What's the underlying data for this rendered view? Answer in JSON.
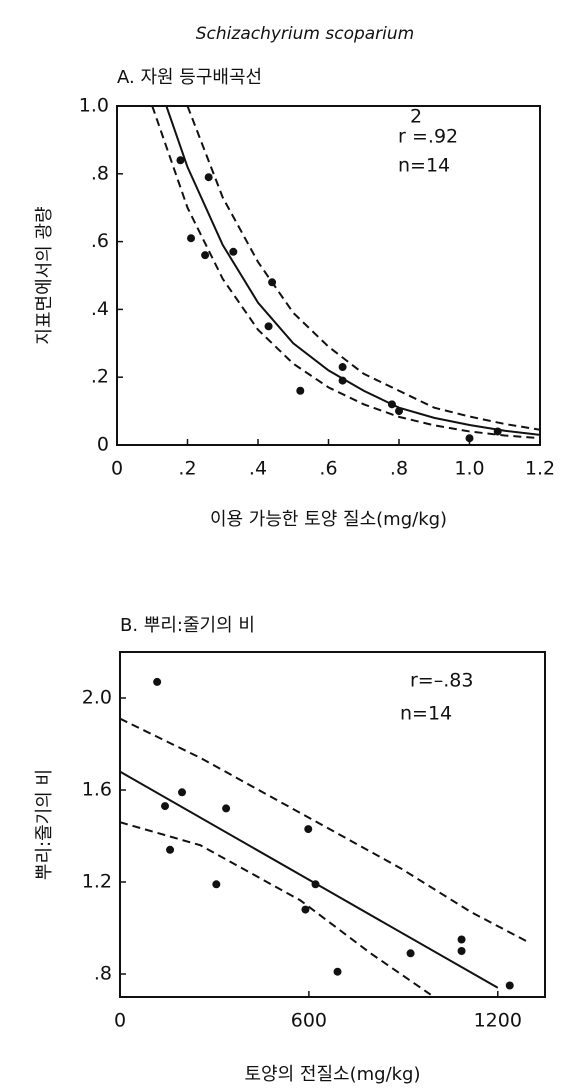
{
  "title": "Schizachyrium scoparium",
  "chart_data": [
    {
      "type": "scatter",
      "title": "A. 자원 등구배곡선",
      "x_label": "이용 가능한 토양 질소(mg/kg)",
      "y_label": "지표면에서의 광량",
      "xlim": [
        0,
        1.2
      ],
      "ylim": [
        0,
        1.0
      ],
      "xticks": [
        0,
        {
          "value": 0.2,
          "label": ".2"
        },
        {
          "value": 0.4,
          "label": ".4"
        },
        {
          "value": 0.6,
          "label": ".6"
        },
        {
          "value": 0.8,
          "label": ".8"
        },
        {
          "value": 1.0,
          "label": "1.0"
        },
        {
          "value": 1.2,
          "label": "1.2"
        }
      ],
      "yticks": [
        0,
        {
          "value": 0.2,
          "label": ".2"
        },
        {
          "value": 0.4,
          "label": ".4"
        },
        {
          "value": 0.6,
          "label": ".6"
        },
        {
          "value": 0.8,
          "label": ".8"
        },
        {
          "value": 1.0,
          "label": "1.0"
        }
      ],
      "annotations": [
        {
          "text": "r",
          "sup": "2",
          "after": "=.92"
        },
        {
          "text": "n=14"
        }
      ],
      "color": "#111111",
      "series": [
        {
          "style": "points",
          "x": [
            0.18,
            0.21,
            0.26,
            0.25,
            0.33,
            0.44,
            0.43,
            0.52,
            0.64,
            0.64,
            0.78,
            0.8,
            1.0,
            1.08
          ],
          "values": [
            0.84,
            0.61,
            0.79,
            0.56,
            0.57,
            0.48,
            0.35,
            0.16,
            0.23,
            0.19,
            0.12,
            0.1,
            0.02,
            0.04
          ]
        },
        {
          "style": "solid",
          "x": [
            0.14,
            0.2,
            0.3,
            0.4,
            0.5,
            0.6,
            0.7,
            0.8,
            0.9,
            1.0,
            1.1,
            1.2
          ],
          "values": [
            1.0,
            0.82,
            0.59,
            0.42,
            0.3,
            0.22,
            0.16,
            0.11,
            0.08,
            0.059,
            0.042,
            0.03
          ]
        },
        {
          "style": "dashed",
          "x": [
            0.2,
            0.3,
            0.4,
            0.5,
            0.6,
            0.7,
            0.8,
            0.9,
            1.0,
            1.1,
            1.2
          ],
          "values": [
            1.0,
            0.73,
            0.54,
            0.39,
            0.29,
            0.21,
            0.16,
            0.11,
            0.084,
            0.062,
            0.045
          ]
        },
        {
          "style": "dashed",
          "x": [
            0.1,
            0.2,
            0.3,
            0.4,
            0.5,
            0.6,
            0.7,
            0.8,
            0.9,
            1.0,
            1.1,
            1.2
          ],
          "values": [
            1.0,
            0.7,
            0.49,
            0.34,
            0.24,
            0.17,
            0.12,
            0.083,
            0.058,
            0.04,
            0.028,
            0.02
          ]
        }
      ]
    },
    {
      "type": "scatter",
      "title": "B. 뿌리:줄기의 비",
      "x_label": "토양의 전질소(mg/kg)",
      "y_label": "뿌리:줄기의 비",
      "xlim": [
        0,
        1350
      ],
      "ylim": [
        0.7,
        2.2
      ],
      "xticks": [
        0,
        600,
        1200
      ],
      "yticks": [
        {
          "value": 0.8,
          "label": ".8"
        },
        {
          "value": 1.2,
          "label": "1.2"
        },
        {
          "value": 1.6,
          "label": "1.6"
        },
        {
          "value": 2.0,
          "label": "2.0"
        }
      ],
      "annotations": [
        {
          "text": "r=–.83"
        },
        {
          "text": "n=14"
        }
      ],
      "color": "#111111",
      "series": [
        {
          "style": "points",
          "x": [
            118,
            143,
            159,
            197,
            306,
            337,
            598,
            589,
            621,
            691,
            923,
            1085,
            1085,
            1238
          ],
          "values": [
            2.07,
            1.53,
            1.34,
            1.59,
            1.19,
            1.52,
            1.43,
            1.08,
            1.19,
            0.81,
            0.89,
            0.95,
            0.9,
            0.75
          ]
        },
        {
          "style": "solid",
          "x": [
            0,
            1200
          ],
          "values": [
            1.68,
            0.74
          ]
        },
        {
          "style": "dashed",
          "x": [
            0,
            255,
            573,
            891,
            1114,
            1295
          ],
          "values": [
            1.91,
            1.74,
            1.5,
            1.26,
            1.07,
            0.94
          ]
        },
        {
          "style": "dashed",
          "x": [
            0,
            255,
            573,
            796,
            987
          ],
          "values": [
            1.46,
            1.36,
            1.12,
            0.89,
            0.71
          ]
        }
      ]
    }
  ]
}
